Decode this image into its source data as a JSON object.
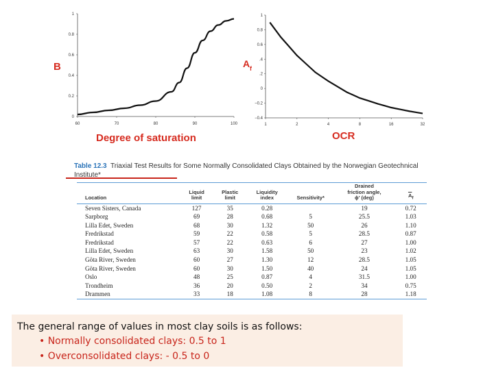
{
  "chart_data": [
    {
      "type": "line",
      "title": "",
      "label": "B",
      "xlabel": "Degree of saturation",
      "ylabel": "B",
      "xlim": [
        60,
        100
      ],
      "ylim": [
        0,
        1
      ],
      "x_ticks": [
        "60",
        "70",
        "80",
        "90",
        "100"
      ],
      "y_ticks": [
        "0",
        "0.2",
        "0.4",
        "0.6",
        "0.8",
        "1"
      ],
      "series": [
        {
          "name": "B",
          "x": [
            60,
            64,
            68,
            72,
            76,
            80,
            84,
            86,
            88,
            90,
            92,
            94,
            96,
            98,
            100
          ],
          "y": [
            0.02,
            0.04,
            0.06,
            0.08,
            0.11,
            0.15,
            0.24,
            0.33,
            0.47,
            0.62,
            0.74,
            0.83,
            0.89,
            0.93,
            0.95
          ]
        }
      ]
    },
    {
      "type": "line",
      "title": "",
      "label": "Af",
      "xlabel": "OCR",
      "ylabel": "Af",
      "x_scale": "log2",
      "xlim": [
        1,
        32
      ],
      "ylim": [
        -0.4,
        1
      ],
      "x_ticks": [
        "1",
        "2",
        "4",
        "8",
        "16",
        "32"
      ],
      "y_ticks": [
        "−0.4",
        "−0.2",
        "0",
        ".2",
        ".4",
        "0.6",
        "0.8",
        "1"
      ],
      "series": [
        {
          "name": "Af",
          "x": [
            1.1,
            1.4,
            2,
            3,
            4,
            6,
            8,
            12,
            16,
            24,
            32
          ],
          "y": [
            0.9,
            0.7,
            0.45,
            0.22,
            0.1,
            -0.05,
            -0.13,
            -0.21,
            -0.26,
            -0.31,
            -0.34
          ]
        }
      ]
    }
  ],
  "labels": {
    "b": "B",
    "af_main": "A",
    "af_sub": "f",
    "x1": "Degree of saturation",
    "x2": "OCR"
  },
  "table": {
    "table_number": "Table 12.3",
    "caption": "Triaxial Test Results for Some Normally Consolidated Clays Obtained by the Norwegian Geotechnical Institute*",
    "headers": {
      "location": "Location",
      "liquid_limit": [
        "Liquid",
        "limit"
      ],
      "plastic_limit": [
        "Plastic",
        "limit"
      ],
      "liquidity_index": [
        "Liquidity",
        "index"
      ],
      "sensitivity": "Sensitivity*",
      "friction": [
        "Drained",
        "friction angle,",
        "ϕ′ (deg)"
      ],
      "af": "A",
      "af_sub": "f"
    },
    "rows": [
      [
        "Seven Sisters, Canada",
        "127",
        "35",
        "0.28",
        "",
        "19",
        "0.72"
      ],
      [
        "Sarpborg",
        "69",
        "28",
        "0.68",
        "5",
        "25.5",
        "1.03"
      ],
      [
        "Lilla Edet, Sweden",
        "68",
        "30",
        "1.32",
        "50",
        "26",
        "1.10"
      ],
      [
        "Fredrikstad",
        "59",
        "22",
        "0.58",
        "5",
        "28.5",
        "0.87"
      ],
      [
        "Fredrikstad",
        "57",
        "22",
        "0.63",
        "6",
        "27",
        "1.00"
      ],
      [
        "Lilla Edet, Sweden",
        "63",
        "30",
        "1.58",
        "50",
        "23",
        "1.02"
      ],
      [
        "Göta River, Sweden",
        "60",
        "27",
        "1.30",
        "12",
        "28.5",
        "1.05"
      ],
      [
        "Göta River, Sweden",
        "60",
        "30",
        "1.50",
        "40",
        "24",
        "1.05"
      ],
      [
        "Oslo",
        "48",
        "25",
        "0.87",
        "4",
        "31.5",
        "1.00"
      ],
      [
        "Trondheim",
        "36",
        "20",
        "0.50",
        "2",
        "34",
        "0.75"
      ],
      [
        "Drammen",
        "33",
        "18",
        "1.08",
        "8",
        "28",
        "1.18"
      ]
    ]
  },
  "note": {
    "intro": "The general range of values in most clay soils is as follows:",
    "bullet1": "• Normally consolidated clays: 0.5 to 1",
    "bullet2": "• Overconsolidated clays: - 0.5 to 0"
  }
}
